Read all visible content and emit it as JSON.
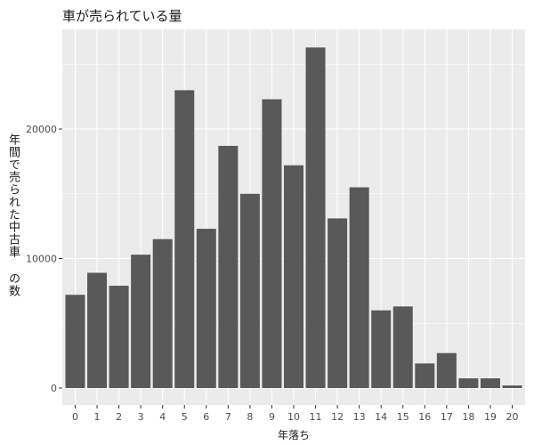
{
  "chart_data": {
    "type": "bar",
    "title": "車が売られている量",
    "xlabel": "年落ち",
    "ylabel": "年間で売られた中古車 の数",
    "categories": [
      "0",
      "1",
      "2",
      "3",
      "4",
      "5",
      "6",
      "7",
      "8",
      "9",
      "10",
      "11",
      "12",
      "13",
      "14",
      "15",
      "16",
      "17",
      "18",
      "19",
      "20"
    ],
    "values": [
      7200,
      8900,
      7900,
      10300,
      11500,
      23000,
      12300,
      18700,
      15000,
      22300,
      17200,
      26300,
      13100,
      15500,
      6000,
      6300,
      1900,
      2700,
      750,
      750,
      200
    ],
    "ylim": [
      0,
      28500
    ],
    "yticks": [
      0,
      10000,
      20000
    ],
    "ytick_labels": [
      "0",
      "10000",
      "20000"
    ],
    "grid": true,
    "colors": {
      "bar": "#595959",
      "panel": "#ebebeb",
      "grid": "#ffffff"
    }
  }
}
